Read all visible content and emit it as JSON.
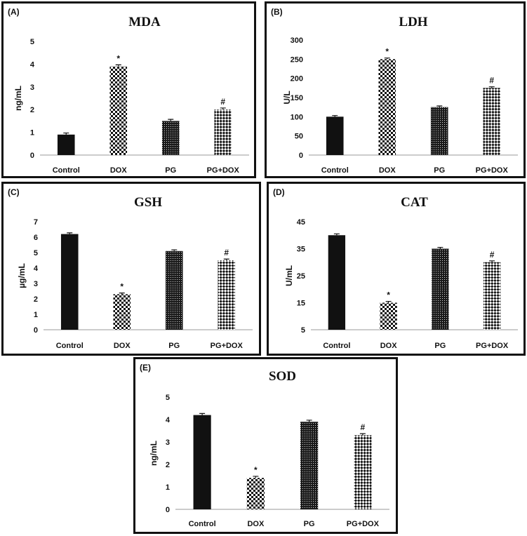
{
  "chart_data": [
    {
      "id": "a",
      "panel_label": "(A)",
      "type": "bar",
      "title": "MDA",
      "ylabel": "ng/mL",
      "xlabel": "",
      "categories": [
        "Control",
        "DOX",
        "PG",
        "PG+DOX"
      ],
      "values": [
        0.9,
        3.9,
        1.5,
        2.0
      ],
      "errors": [
        0.07,
        0.07,
        0.07,
        0.07
      ],
      "ylim": [
        0,
        5
      ],
      "yticks": [
        "0",
        "1",
        "2",
        "3",
        "4",
        "5"
      ],
      "annotations": [
        "",
        "*",
        "",
        "#"
      ],
      "grid": false
    },
    {
      "id": "b",
      "panel_label": "(B)",
      "type": "bar",
      "title": "LDH",
      "ylabel": "U/L",
      "xlabel": "",
      "categories": [
        "Control",
        "DOX",
        "PG",
        "PG+DOX"
      ],
      "values": [
        100,
        250,
        125,
        175
      ],
      "errors": [
        3,
        3,
        3,
        3
      ],
      "ylim": [
        0,
        300
      ],
      "yticks": [
        "0",
        "50",
        "100",
        "150",
        "200",
        "250",
        "300"
      ],
      "annotations": [
        "",
        "*",
        "",
        "#"
      ],
      "grid": false
    },
    {
      "id": "c",
      "panel_label": "(C)",
      "type": "bar",
      "title": "GSH",
      "ylabel": "µg/mL",
      "xlabel": "",
      "categories": [
        "Control",
        "DOX",
        "PG",
        "PG+DOX"
      ],
      "values": [
        6.2,
        2.3,
        5.1,
        4.5
      ],
      "errors": [
        0.08,
        0.08,
        0.08,
        0.08
      ],
      "ylim": [
        0,
        7
      ],
      "yticks": [
        "0",
        "1",
        "2",
        "3",
        "4",
        "5",
        "6",
        "7"
      ],
      "annotations": [
        "",
        "*",
        "",
        "#"
      ],
      "grid": false
    },
    {
      "id": "d",
      "panel_label": "(D)",
      "type": "bar",
      "title": "CAT",
      "ylabel": "U/mL",
      "xlabel": "",
      "categories": [
        "Control",
        "DOX",
        "PG",
        "PG+DOX"
      ],
      "values": [
        40,
        15,
        35,
        30
      ],
      "errors": [
        0.5,
        0.5,
        0.5,
        0.5
      ],
      "ylim": [
        5,
        45
      ],
      "yticks": [
        "5",
        "15",
        "25",
        "35",
        "45"
      ],
      "annotations": [
        "",
        "*",
        "",
        "#"
      ],
      "grid": false
    },
    {
      "id": "e",
      "panel_label": "(E)",
      "type": "bar",
      "title": "SOD",
      "ylabel": "ng/mL",
      "xlabel": "",
      "categories": [
        "Control",
        "DOX",
        "PG",
        "PG+DOX"
      ],
      "values": [
        4.2,
        1.4,
        3.9,
        3.3
      ],
      "errors": [
        0.07,
        0.07,
        0.07,
        0.07
      ],
      "ylim": [
        0,
        5
      ],
      "yticks": [
        "0",
        "1",
        "2",
        "3",
        "4",
        "5"
      ],
      "annotations": [
        "",
        "*",
        "",
        "#"
      ],
      "grid": false
    }
  ],
  "bar_styles": [
    "solid-black",
    "checker",
    "dense-dots",
    "diamond-check"
  ]
}
